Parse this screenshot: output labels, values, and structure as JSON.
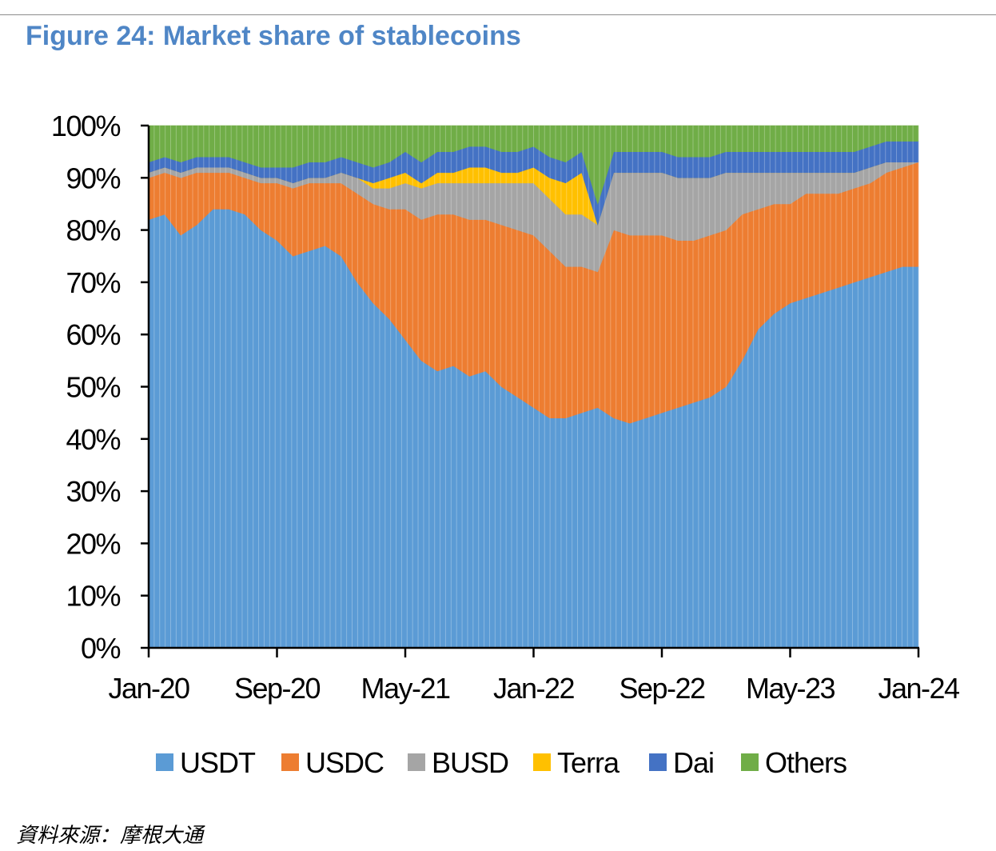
{
  "title": "Figure 24: Market share of stablecoins",
  "source": "資料來源：摩根大通",
  "chart_data": {
    "type": "area",
    "stacked": true,
    "normalized": true,
    "title": "Figure 24: Market share of stablecoins",
    "xlabel": "",
    "ylabel": "",
    "ylim": [
      0,
      100
    ],
    "x_range": [
      "Jan-20",
      "Jan-24"
    ],
    "xticks": [
      "Jan-20",
      "Sep-20",
      "May-21",
      "Jan-22",
      "Sep-22",
      "May-23",
      "Jan-24"
    ],
    "yticks": [
      "0%",
      "10%",
      "20%",
      "30%",
      "40%",
      "50%",
      "60%",
      "70%",
      "80%",
      "90%",
      "100%"
    ],
    "legend_position": "bottom",
    "x": [
      "Jan-20",
      "Feb-20",
      "Mar-20",
      "Apr-20",
      "May-20",
      "Jun-20",
      "Jul-20",
      "Aug-20",
      "Sep-20",
      "Oct-20",
      "Nov-20",
      "Dec-20",
      "Jan-21",
      "Feb-21",
      "Mar-21",
      "Apr-21",
      "May-21",
      "Jun-21",
      "Jul-21",
      "Aug-21",
      "Sep-21",
      "Oct-21",
      "Nov-21",
      "Dec-21",
      "Jan-22",
      "Feb-22",
      "Mar-22",
      "Apr-22",
      "May-22",
      "Jun-22",
      "Jul-22",
      "Aug-22",
      "Sep-22",
      "Oct-22",
      "Nov-22",
      "Dec-22",
      "Jan-23",
      "Feb-23",
      "Mar-23",
      "Apr-23",
      "May-23",
      "Jun-23",
      "Jul-23",
      "Aug-23",
      "Sep-23",
      "Oct-23",
      "Nov-23",
      "Dec-23",
      "Jan-24"
    ],
    "series": [
      {
        "name": "USDT",
        "color": "#5b9bd5",
        "values": [
          82,
          83,
          79,
          81,
          84,
          84,
          83,
          80,
          78,
          75,
          76,
          77,
          75,
          70,
          66,
          63,
          59,
          55,
          53,
          54,
          52,
          53,
          50,
          48,
          46,
          44,
          44,
          45,
          46,
          44,
          43,
          44,
          45,
          46,
          47,
          48,
          50,
          55,
          61,
          64,
          66,
          67,
          68,
          69,
          70,
          71,
          72,
          73,
          73
        ]
      },
      {
        "name": "USDC",
        "color": "#ed7d31",
        "values": [
          8,
          8,
          11,
          10,
          7,
          7,
          7,
          9,
          11,
          13,
          13,
          12,
          14,
          17,
          19,
          21,
          25,
          27,
          30,
          29,
          30,
          29,
          31,
          32,
          33,
          32,
          29,
          28,
          26,
          36,
          36,
          35,
          34,
          32,
          31,
          31,
          30,
          28,
          23,
          21,
          19,
          20,
          19,
          18,
          18,
          18,
          19,
          19,
          20
        ]
      },
      {
        "name": "BUSD",
        "color": "#a5a5a5",
        "values": [
          1,
          1,
          1,
          1,
          1,
          1,
          1,
          1,
          1,
          1,
          1,
          1,
          2,
          3,
          3,
          4,
          5,
          6,
          6,
          6,
          7,
          7,
          8,
          9,
          10,
          10,
          10,
          10,
          9,
          11,
          12,
          12,
          12,
          12,
          12,
          11,
          11,
          8,
          7,
          6,
          6,
          4,
          4,
          4,
          3,
          3,
          2,
          1,
          0
        ]
      },
      {
        "name": "Terra",
        "color": "#ffc000",
        "values": [
          0,
          0,
          0,
          0,
          0,
          0,
          0,
          0,
          0,
          0,
          0,
          0,
          0,
          0,
          1,
          2,
          2,
          1,
          2,
          2,
          3,
          3,
          2,
          2,
          3,
          4,
          6,
          8,
          0,
          0,
          0,
          0,
          0,
          0,
          0,
          0,
          0,
          0,
          0,
          0,
          0,
          0,
          0,
          0,
          0,
          0,
          0,
          0,
          0
        ]
      },
      {
        "name": "Dai",
        "color": "#4472c4",
        "values": [
          2,
          2,
          2,
          2,
          2,
          2,
          2,
          2,
          2,
          3,
          3,
          3,
          3,
          3,
          3,
          3,
          4,
          4,
          4,
          4,
          4,
          4,
          4,
          4,
          4,
          4,
          4,
          4,
          4,
          4,
          4,
          4,
          4,
          4,
          4,
          4,
          4,
          4,
          4,
          4,
          4,
          4,
          4,
          4,
          4,
          4,
          4,
          4,
          4
        ]
      },
      {
        "name": "Others",
        "color": "#70ad47",
        "values": [
          7,
          6,
          7,
          6,
          6,
          6,
          7,
          8,
          8,
          8,
          7,
          7,
          6,
          7,
          8,
          7,
          5,
          7,
          5,
          5,
          4,
          4,
          5,
          5,
          4,
          6,
          7,
          5,
          15,
          5,
          5,
          5,
          5,
          6,
          6,
          6,
          5,
          5,
          5,
          5,
          5,
          5,
          5,
          5,
          5,
          4,
          3,
          3,
          3
        ]
      }
    ]
  }
}
